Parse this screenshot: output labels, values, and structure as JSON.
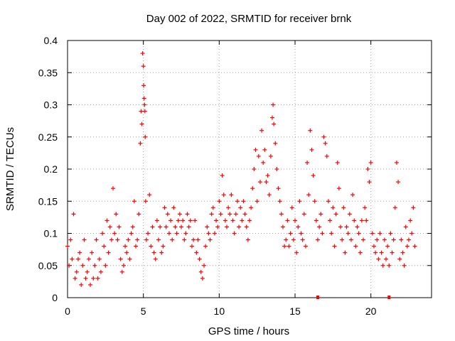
{
  "page": {
    "title": "Day 002 of 2022, SRMTID for receiver brnk"
  },
  "chart_data": {
    "type": "scatter",
    "title": "Day 002 of 2022, SRMTID for receiver brnk",
    "xlabel": "GPS time / hours",
    "ylabel": "SRMTID / TECUs",
    "xlim": [
      0,
      24
    ],
    "ylim": [
      0,
      0.4
    ],
    "x_ticks": [
      0,
      5,
      10,
      15,
      20
    ],
    "x_tick_labels": [
      "0",
      "5",
      "10",
      "15",
      "20"
    ],
    "y_ticks": [
      0,
      0.05,
      0.1,
      0.15,
      0.2,
      0.25,
      0.3,
      0.35,
      0.4
    ],
    "y_tick_labels": [
      "0",
      "0.05",
      "0.1",
      "0.15",
      "0.2",
      "0.25",
      "0.3",
      "0.35",
      "0.4"
    ],
    "grid": true,
    "colors": {
      "points": "#ff0000",
      "grid": "#a0a0a0",
      "frame": "#000000"
    },
    "series": [
      {
        "name": "SRMTID",
        "marker": "plus",
        "values": [
          [
            0.0,
            0.08
          ],
          [
            0.1,
            0.05
          ],
          [
            0.2,
            0.09
          ],
          [
            0.3,
            0.06
          ],
          [
            0.4,
            0.13
          ],
          [
            0.5,
            0.03
          ],
          [
            0.6,
            0.04
          ],
          [
            0.7,
            0.06
          ],
          [
            0.8,
            0.07
          ],
          [
            0.9,
            0.02
          ],
          [
            1.0,
            0.05
          ],
          [
            1.1,
            0.09
          ],
          [
            1.2,
            0.03
          ],
          [
            1.3,
            0.04
          ],
          [
            1.4,
            0.06
          ],
          [
            1.5,
            0.02
          ],
          [
            1.6,
            0.07
          ],
          [
            1.7,
            0.03
          ],
          [
            1.8,
            0.05
          ],
          [
            1.9,
            0.09
          ],
          [
            2.0,
            0.03
          ],
          [
            2.1,
            0.06
          ],
          [
            2.2,
            0.04
          ],
          [
            2.3,
            0.1
          ],
          [
            2.4,
            0.08
          ],
          [
            2.5,
            0.05
          ],
          [
            2.6,
            0.12
          ],
          [
            2.7,
            0.07
          ],
          [
            2.8,
            0.11
          ],
          [
            2.9,
            0.09
          ],
          [
            3.0,
            0.17
          ],
          [
            3.1,
            0.1
          ],
          [
            3.2,
            0.13
          ],
          [
            3.3,
            0.09
          ],
          [
            3.4,
            0.11
          ],
          [
            3.5,
            0.06
          ],
          [
            3.6,
            0.04
          ],
          [
            3.7,
            0.05
          ],
          [
            3.8,
            0.08
          ],
          [
            3.9,
            0.07
          ],
          [
            4.0,
            0.09
          ],
          [
            4.1,
            0.06
          ],
          [
            4.2,
            0.1
          ],
          [
            4.3,
            0.11
          ],
          [
            4.4,
            0.15
          ],
          [
            4.5,
            0.08
          ],
          [
            4.6,
            0.09
          ],
          [
            4.7,
            0.13
          ],
          [
            4.8,
            0.24
          ],
          [
            4.85,
            0.29
          ],
          [
            4.9,
            0.27
          ],
          [
            4.95,
            0.38
          ],
          [
            5.0,
            0.36
          ],
          [
            5.02,
            0.33
          ],
          [
            5.05,
            0.31
          ],
          [
            5.08,
            0.3
          ],
          [
            5.1,
            0.29
          ],
          [
            5.12,
            0.25
          ],
          [
            5.15,
            0.15
          ],
          [
            5.2,
            0.09
          ],
          [
            5.3,
            0.1
          ],
          [
            5.4,
            0.16
          ],
          [
            5.5,
            0.08
          ],
          [
            5.6,
            0.11
          ],
          [
            5.7,
            0.07
          ],
          [
            5.8,
            0.06
          ],
          [
            5.9,
            0.12
          ],
          [
            6.0,
            0.09
          ],
          [
            6.1,
            0.11
          ],
          [
            6.2,
            0.07
          ],
          [
            6.3,
            0.08
          ],
          [
            6.4,
            0.14
          ],
          [
            6.5,
            0.11
          ],
          [
            6.6,
            0.13
          ],
          [
            6.7,
            0.1
          ],
          [
            6.8,
            0.12
          ],
          [
            6.9,
            0.09
          ],
          [
            7.0,
            0.14
          ],
          [
            7.1,
            0.11
          ],
          [
            7.2,
            0.1
          ],
          [
            7.3,
            0.12
          ],
          [
            7.4,
            0.13
          ],
          [
            7.5,
            0.11
          ],
          [
            7.6,
            0.12
          ],
          [
            7.7,
            0.09
          ],
          [
            7.8,
            0.1
          ],
          [
            7.9,
            0.13
          ],
          [
            8.0,
            0.11
          ],
          [
            8.1,
            0.12
          ],
          [
            8.2,
            0.08
          ],
          [
            8.3,
            0.09
          ],
          [
            8.4,
            0.12
          ],
          [
            8.5,
            0.07
          ],
          [
            8.6,
            0.09
          ],
          [
            8.7,
            0.06
          ],
          [
            8.8,
            0.04
          ],
          [
            8.9,
            0.03
          ],
          [
            9.0,
            0.05
          ],
          [
            9.1,
            0.08
          ],
          [
            9.2,
            0.11
          ],
          [
            9.3,
            0.1
          ],
          [
            9.4,
            0.09
          ],
          [
            9.5,
            0.13
          ],
          [
            9.6,
            0.14
          ],
          [
            9.7,
            0.1
          ],
          [
            9.8,
            0.12
          ],
          [
            9.9,
            0.11
          ],
          [
            10.0,
            0.15
          ],
          [
            10.1,
            0.13
          ],
          [
            10.2,
            0.19
          ],
          [
            10.3,
            0.16
          ],
          [
            10.4,
            0.12
          ],
          [
            10.5,
            0.11
          ],
          [
            10.6,
            0.14
          ],
          [
            10.7,
            0.13
          ],
          [
            10.8,
            0.16
          ],
          [
            10.9,
            0.12
          ],
          [
            11.0,
            0.1
          ],
          [
            11.1,
            0.13
          ],
          [
            11.2,
            0.15
          ],
          [
            11.3,
            0.11
          ],
          [
            11.4,
            0.14
          ],
          [
            11.5,
            0.12
          ],
          [
            11.6,
            0.15
          ],
          [
            11.7,
            0.13
          ],
          [
            11.8,
            0.11
          ],
          [
            11.9,
            0.09
          ],
          [
            12.0,
            0.12
          ],
          [
            12.1,
            0.14
          ],
          [
            12.2,
            0.17
          ],
          [
            12.3,
            0.2
          ],
          [
            12.4,
            0.23
          ],
          [
            12.5,
            0.15
          ],
          [
            12.6,
            0.22
          ],
          [
            12.7,
            0.18
          ],
          [
            12.8,
            0.26
          ],
          [
            12.9,
            0.21
          ],
          [
            13.0,
            0.23
          ],
          [
            13.1,
            0.18
          ],
          [
            13.2,
            0.19
          ],
          [
            13.3,
            0.16
          ],
          [
            13.4,
            0.22
          ],
          [
            13.5,
            0.28
          ],
          [
            13.55,
            0.3
          ],
          [
            13.6,
            0.27
          ],
          [
            13.7,
            0.24
          ],
          [
            13.8,
            0.2
          ],
          [
            13.9,
            0.17
          ],
          [
            14.0,
            0.15
          ],
          [
            14.1,
            0.13
          ],
          [
            14.2,
            0.11
          ],
          [
            14.3,
            0.08
          ],
          [
            14.4,
            0.09
          ],
          [
            14.5,
            0.12
          ],
          [
            14.6,
            0.08
          ],
          [
            14.7,
            0.1
          ],
          [
            14.8,
            0.14
          ],
          [
            14.9,
            0.09
          ],
          [
            15.0,
            0.12
          ],
          [
            15.1,
            0.07
          ],
          [
            15.2,
            0.11
          ],
          [
            15.3,
            0.15
          ],
          [
            15.4,
            0.1
          ],
          [
            15.5,
            0.09
          ],
          [
            15.6,
            0.13
          ],
          [
            15.7,
            0.08
          ],
          [
            15.8,
            0.21
          ],
          [
            15.9,
            0.16
          ],
          [
            16.0,
            0.26
          ],
          [
            16.1,
            0.23
          ],
          [
            16.2,
            0.19
          ],
          [
            16.3,
            0.15
          ],
          [
            16.4,
            0.12
          ],
          [
            16.5,
            0.09
          ],
          [
            16.6,
            0.11
          ],
          [
            16.7,
            0.13
          ],
          [
            16.8,
            0.1
          ],
          [
            16.9,
            0.25
          ],
          [
            17.0,
            0.24
          ],
          [
            17.1,
            0.22
          ],
          [
            17.2,
            0.15
          ],
          [
            17.3,
            0.12
          ],
          [
            17.4,
            0.1
          ],
          [
            17.5,
            0.14
          ],
          [
            17.6,
            0.08
          ],
          [
            17.7,
            0.13
          ],
          [
            17.8,
            0.21
          ],
          [
            17.9,
            0.17
          ],
          [
            18.0,
            0.11
          ],
          [
            18.1,
            0.09
          ],
          [
            18.2,
            0.14
          ],
          [
            18.3,
            0.07
          ],
          [
            18.4,
            0.11
          ],
          [
            18.5,
            0.1
          ],
          [
            18.6,
            0.13
          ],
          [
            18.7,
            0.09
          ],
          [
            18.8,
            0.16
          ],
          [
            18.9,
            0.12
          ],
          [
            19.0,
            0.08
          ],
          [
            19.1,
            0.11
          ],
          [
            19.2,
            0.1
          ],
          [
            19.3,
            0.07
          ],
          [
            19.4,
            0.12
          ],
          [
            19.5,
            0.09
          ],
          [
            19.6,
            0.14
          ],
          [
            19.7,
            0.12
          ],
          [
            19.8,
            0.2
          ],
          [
            19.9,
            0.18
          ],
          [
            20.0,
            0.21
          ],
          [
            20.1,
            0.1
          ],
          [
            20.2,
            0.08
          ],
          [
            20.3,
            0.07
          ],
          [
            20.4,
            0.09
          ],
          [
            20.5,
            0.06
          ],
          [
            20.6,
            0.1
          ],
          [
            20.7,
            0.07
          ],
          [
            20.8,
            0.05
          ],
          [
            20.9,
            0.09
          ],
          [
            21.0,
            0.06
          ],
          [
            21.1,
            0.08
          ],
          [
            21.2,
            0.05
          ],
          [
            21.3,
            0.1
          ],
          [
            21.4,
            0.07
          ],
          [
            21.5,
            0.09
          ],
          [
            21.6,
            0.14
          ],
          [
            21.7,
            0.21
          ],
          [
            21.8,
            0.18
          ],
          [
            21.9,
            0.06
          ],
          [
            22.0,
            0.09
          ],
          [
            22.1,
            0.07
          ],
          [
            22.2,
            0.05
          ],
          [
            22.3,
            0.11
          ],
          [
            22.4,
            0.08
          ],
          [
            22.5,
            0.09
          ],
          [
            22.6,
            0.12
          ],
          [
            22.7,
            0.1
          ],
          [
            22.8,
            0.14
          ],
          [
            22.9,
            0.08
          ]
        ]
      }
    ],
    "markers": {
      "x_axis_markers": [
        16.5,
        21.2
      ]
    }
  }
}
